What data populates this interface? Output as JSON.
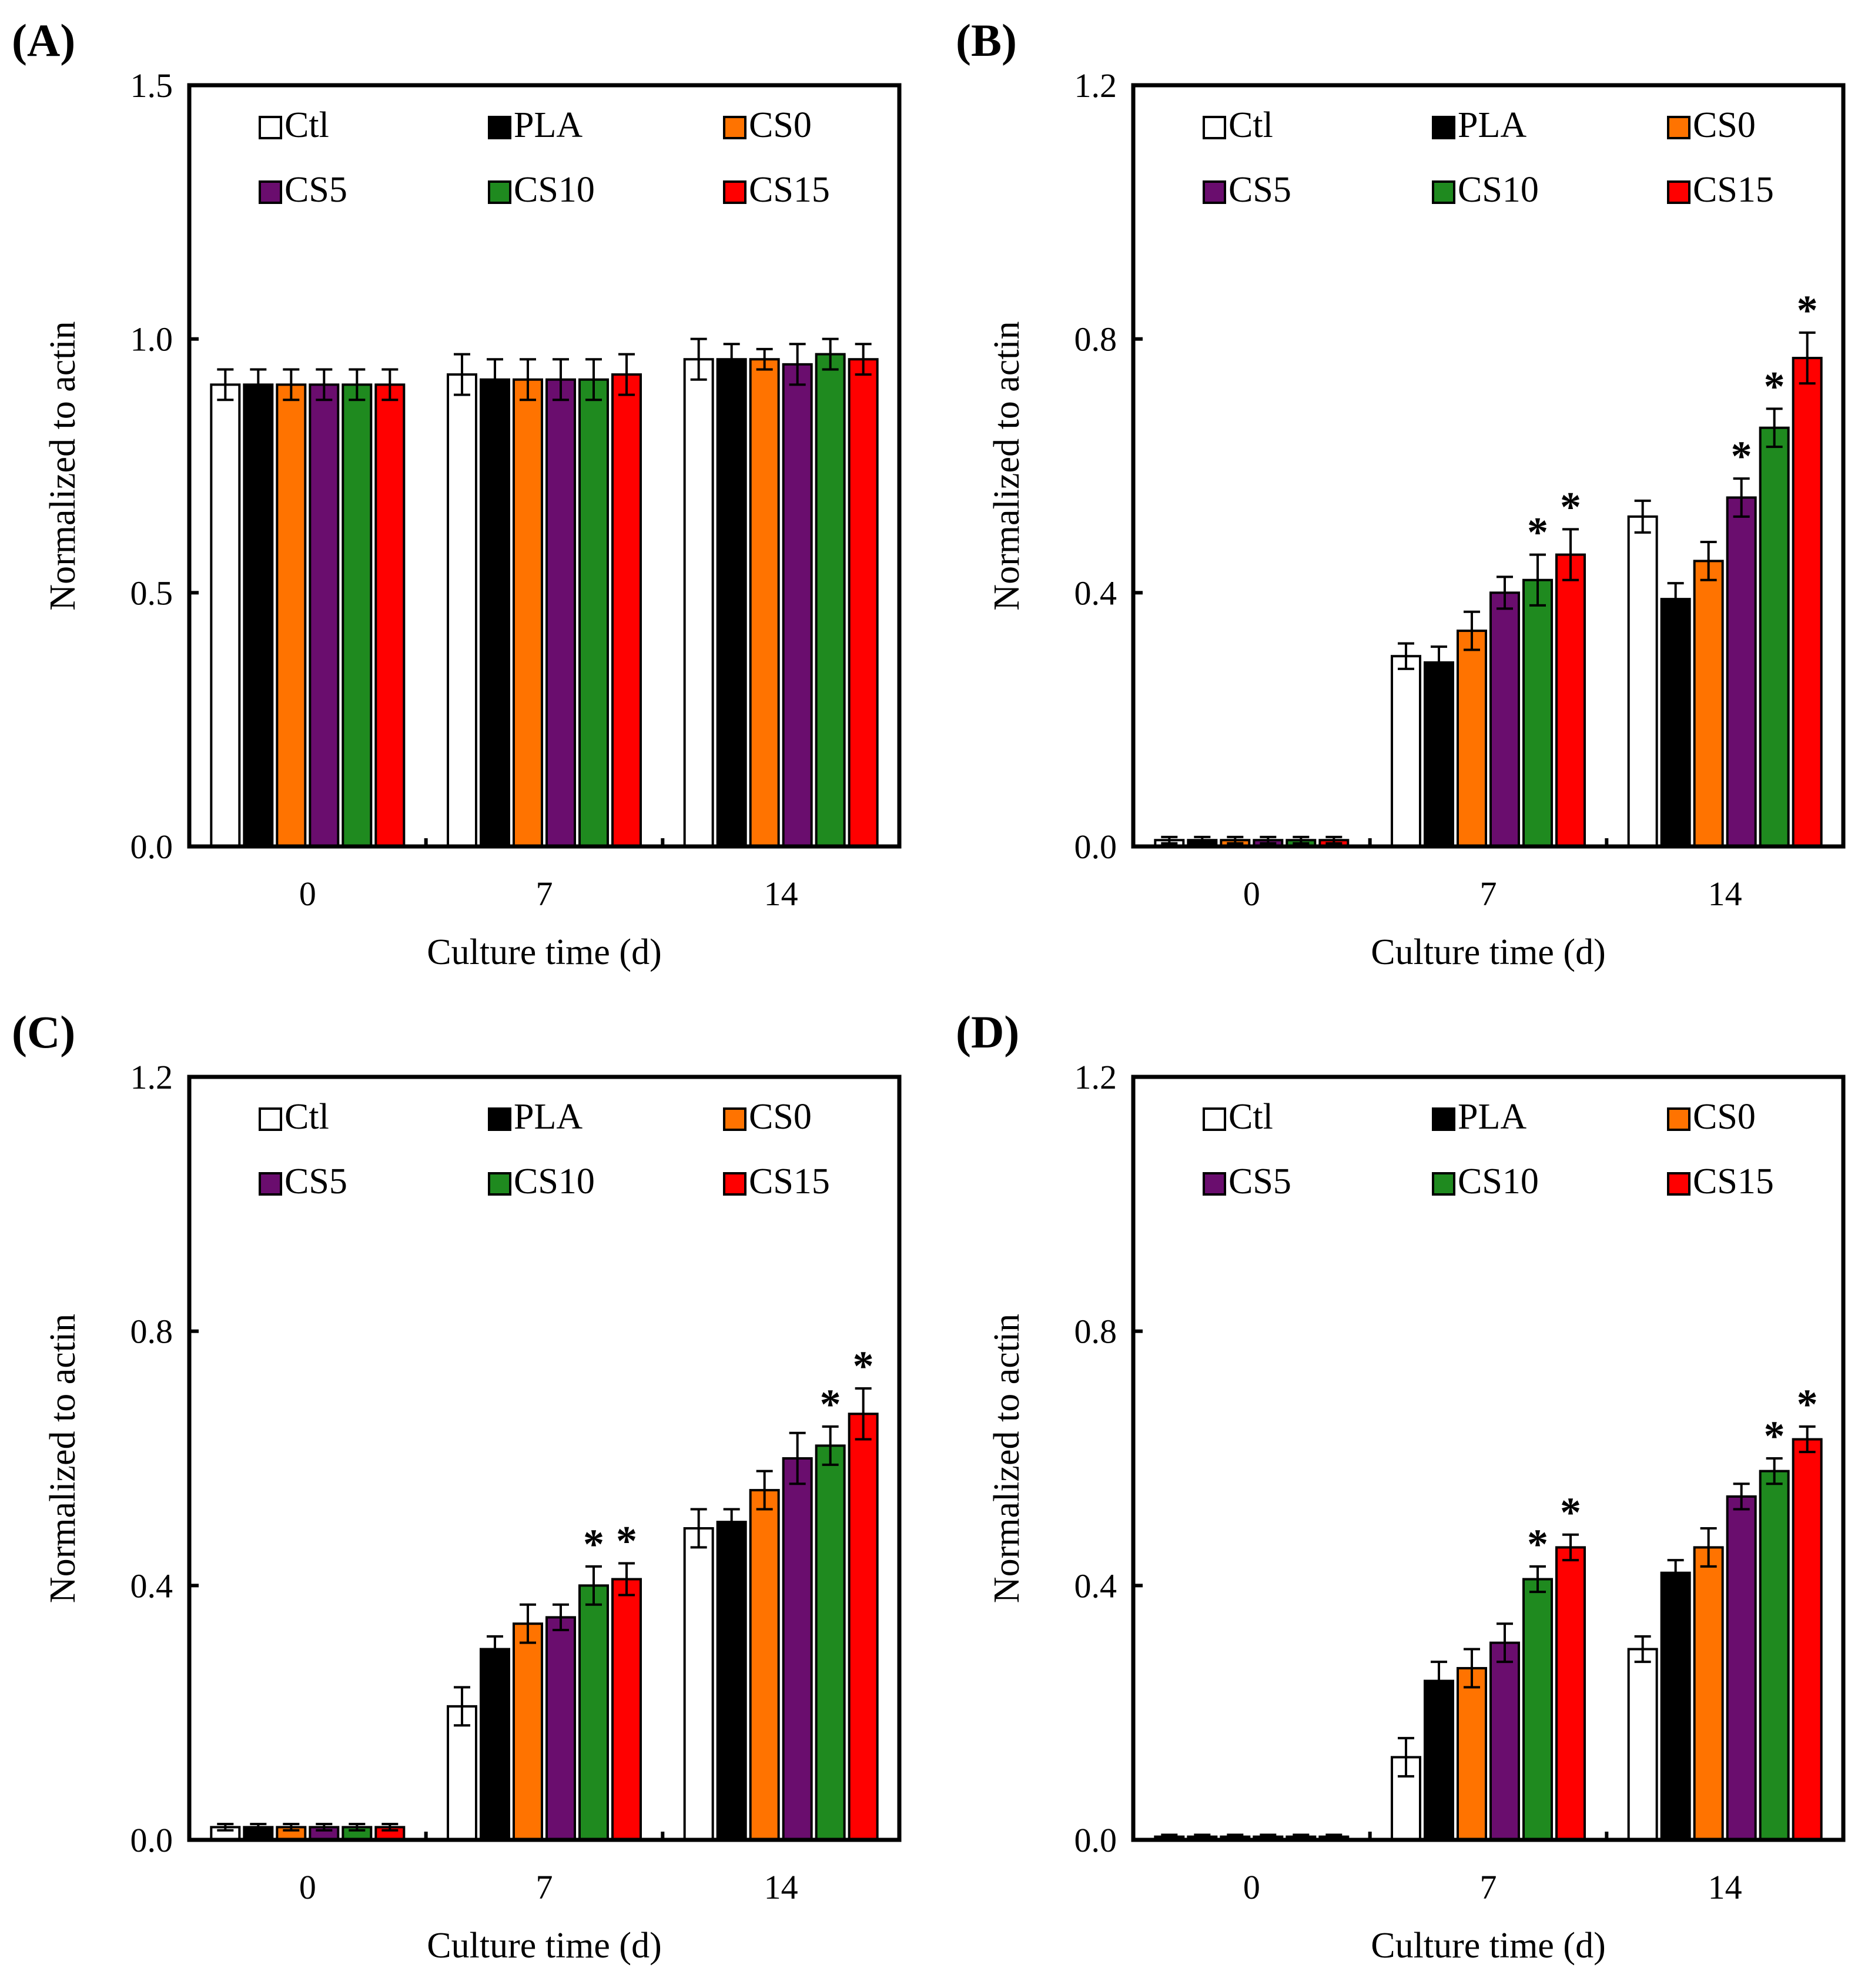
{
  "chart_data": [
    {
      "type": "bar",
      "panel_label": "(A)",
      "categories": [
        "0",
        "7",
        "14"
      ],
      "xlabel": "Culture time (d)",
      "ylabel": "Normalized to actin",
      "ylim": [
        0,
        1.5
      ],
      "yticks": [
        "0.0",
        "0.5",
        "1.0",
        "1.5"
      ],
      "series": [
        {
          "name": "Ctl",
          "values": [
            0.91,
            0.93,
            0.96
          ],
          "errors": [
            0.03,
            0.04,
            0.04
          ],
          "sig": [
            false,
            false,
            false
          ]
        },
        {
          "name": "PLA",
          "values": [
            0.91,
            0.92,
            0.96
          ],
          "errors": [
            0.03,
            0.04,
            0.03
          ],
          "sig": [
            false,
            false,
            false
          ]
        },
        {
          "name": "CS0",
          "values": [
            0.91,
            0.92,
            0.96
          ],
          "errors": [
            0.03,
            0.04,
            0.02
          ],
          "sig": [
            false,
            false,
            false
          ]
        },
        {
          "name": "CS5",
          "values": [
            0.91,
            0.92,
            0.95
          ],
          "errors": [
            0.03,
            0.04,
            0.04
          ],
          "sig": [
            false,
            false,
            false
          ]
        },
        {
          "name": "CS10",
          "values": [
            0.91,
            0.92,
            0.97
          ],
          "errors": [
            0.03,
            0.04,
            0.03
          ],
          "sig": [
            false,
            false,
            false
          ]
        },
        {
          "name": "CS15",
          "values": [
            0.91,
            0.93,
            0.96
          ],
          "errors": [
            0.03,
            0.04,
            0.03
          ],
          "sig": [
            false,
            false,
            false
          ]
        }
      ]
    },
    {
      "type": "bar",
      "panel_label": "(B)",
      "categories": [
        "0",
        "7",
        "14"
      ],
      "xlabel": "Culture time (d)",
      "ylabel": "Normalized to actin",
      "ylim": [
        0,
        1.2
      ],
      "yticks": [
        "0.0",
        "0.4",
        "0.8",
        "1.2"
      ],
      "series": [
        {
          "name": "Ctl",
          "values": [
            0.01,
            0.3,
            0.52
          ],
          "errors": [
            0.005,
            0.02,
            0.025
          ],
          "sig": [
            false,
            false,
            false
          ]
        },
        {
          "name": "PLA",
          "values": [
            0.01,
            0.29,
            0.39
          ],
          "errors": [
            0.005,
            0.025,
            0.025
          ],
          "sig": [
            false,
            false,
            false
          ]
        },
        {
          "name": "CS0",
          "values": [
            0.01,
            0.34,
            0.45
          ],
          "errors": [
            0.005,
            0.03,
            0.03
          ],
          "sig": [
            false,
            false,
            false
          ]
        },
        {
          "name": "CS5",
          "values": [
            0.01,
            0.4,
            0.55
          ],
          "errors": [
            0.005,
            0.025,
            0.03
          ],
          "sig": [
            false,
            false,
            true
          ]
        },
        {
          "name": "CS10",
          "values": [
            0.01,
            0.42,
            0.66
          ],
          "errors": [
            0.005,
            0.04,
            0.03
          ],
          "sig": [
            false,
            true,
            true
          ]
        },
        {
          "name": "CS15",
          "values": [
            0.01,
            0.46,
            0.77
          ],
          "errors": [
            0.005,
            0.04,
            0.04
          ],
          "sig": [
            false,
            true,
            true
          ]
        }
      ]
    },
    {
      "type": "bar",
      "panel_label": "(C)",
      "categories": [
        "0",
        "7",
        "14"
      ],
      "xlabel": "Culture time (d)",
      "ylabel": "Normalized to actin",
      "ylim": [
        0,
        1.2
      ],
      "yticks": [
        "0.0",
        "0.4",
        "0.8",
        "1.2"
      ],
      "series": [
        {
          "name": "Ctl",
          "values": [
            0.02,
            0.21,
            0.49
          ],
          "errors": [
            0.005,
            0.03,
            0.03
          ],
          "sig": [
            false,
            false,
            false
          ]
        },
        {
          "name": "PLA",
          "values": [
            0.02,
            0.3,
            0.5
          ],
          "errors": [
            0.005,
            0.02,
            0.02
          ],
          "sig": [
            false,
            false,
            false
          ]
        },
        {
          "name": "CS0",
          "values": [
            0.02,
            0.34,
            0.55
          ],
          "errors": [
            0.005,
            0.03,
            0.03
          ],
          "sig": [
            false,
            false,
            false
          ]
        },
        {
          "name": "CS5",
          "values": [
            0.02,
            0.35,
            0.6
          ],
          "errors": [
            0.005,
            0.02,
            0.04
          ],
          "sig": [
            false,
            false,
            false
          ]
        },
        {
          "name": "CS10",
          "values": [
            0.02,
            0.4,
            0.62
          ],
          "errors": [
            0.005,
            0.03,
            0.03
          ],
          "sig": [
            false,
            true,
            true
          ]
        },
        {
          "name": "CS15",
          "values": [
            0.02,
            0.41,
            0.67
          ],
          "errors": [
            0.005,
            0.025,
            0.04
          ],
          "sig": [
            false,
            true,
            true
          ]
        }
      ]
    },
    {
      "type": "bar",
      "panel_label": "(D)",
      "categories": [
        "0",
        "7",
        "14"
      ],
      "xlabel": "Culture time (d)",
      "ylabel": "Normalized to actin",
      "ylim": [
        0,
        1.2
      ],
      "yticks": [
        "0.0",
        "0.4",
        "0.8",
        "1.2"
      ],
      "series": [
        {
          "name": "Ctl",
          "values": [
            0.005,
            0.13,
            0.3
          ],
          "errors": [
            0.003,
            0.03,
            0.02
          ],
          "sig": [
            false,
            false,
            false
          ]
        },
        {
          "name": "PLA",
          "values": [
            0.005,
            0.25,
            0.42
          ],
          "errors": [
            0.003,
            0.03,
            0.02
          ],
          "sig": [
            false,
            false,
            false
          ]
        },
        {
          "name": "CS0",
          "values": [
            0.005,
            0.27,
            0.46
          ],
          "errors": [
            0.003,
            0.03,
            0.03
          ],
          "sig": [
            false,
            false,
            false
          ]
        },
        {
          "name": "CS5",
          "values": [
            0.005,
            0.31,
            0.54
          ],
          "errors": [
            0.003,
            0.03,
            0.02
          ],
          "sig": [
            false,
            false,
            false
          ]
        },
        {
          "name": "CS10",
          "values": [
            0.005,
            0.41,
            0.58
          ],
          "errors": [
            0.003,
            0.02,
            0.02
          ],
          "sig": [
            false,
            true,
            true
          ]
        },
        {
          "name": "CS15",
          "values": [
            0.005,
            0.46,
            0.63
          ],
          "errors": [
            0.003,
            0.02,
            0.02
          ],
          "sig": [
            false,
            true,
            true
          ]
        }
      ]
    }
  ],
  "colors": {
    "Ctl": "#ffffff",
    "PLA": "#000000",
    "CS0": "#ff7300",
    "CS5": "#6a0d6e",
    "CS10": "#1f8a1f",
    "CS15": "#ff0000"
  },
  "significance_marker": "*"
}
